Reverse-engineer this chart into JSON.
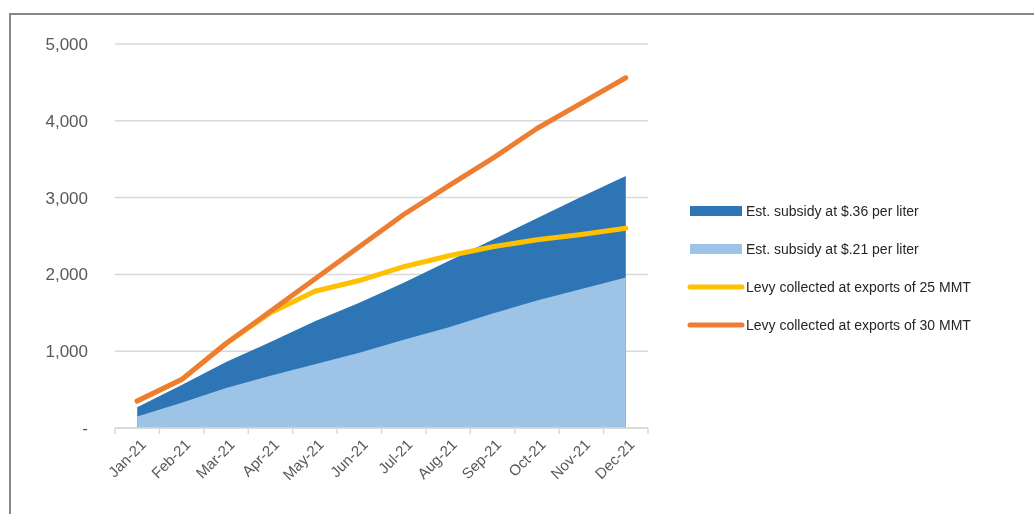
{
  "chart_data": {
    "type": "line",
    "categories": [
      "Jan-21",
      "Feb-21",
      "Mar-21",
      "Apr-21",
      "May-21",
      "Jun-21",
      "Jul-21",
      "Aug-21",
      "Sep-21",
      "Oct-21",
      "Nov-21",
      "Dec-21"
    ],
    "series": [
      {
        "name": "Est. subsidy at $.36 per liter",
        "type": "area",
        "color": "#2e75b6",
        "values": [
          270,
          560,
          860,
          1120,
          1390,
          1630,
          1890,
          2170,
          2450,
          2730,
          3010,
          3280
        ]
      },
      {
        "name": "Est. subsidy at $.21 per liter",
        "type": "area",
        "color": "#9dc3e6",
        "values": [
          150,
          330,
          520,
          680,
          830,
          980,
          1150,
          1310,
          1490,
          1660,
          1810,
          1960
        ]
      },
      {
        "name": "Levy collected at exports of 25 MMT",
        "color": "#ffc000",
        "values": [
          350,
          630,
          1100,
          1500,
          1780,
          1920,
          2100,
          2240,
          2360,
          2450,
          2520,
          2600
        ]
      },
      {
        "name": "Levy collected at exports of 30 MMT",
        "color": "#ed7d31",
        "values": [
          350,
          630,
          1100,
          1520,
          1940,
          2360,
          2780,
          3150,
          3510,
          3900,
          4230,
          4560
        ]
      }
    ],
    "ylim": [
      0,
      5000
    ],
    "yticks": [
      {
        "value": 0,
        "label": "-"
      },
      {
        "value": 1000,
        "label": "1,000"
      },
      {
        "value": 2000,
        "label": "2,000"
      },
      {
        "value": 3000,
        "label": "3,000"
      },
      {
        "value": 4000,
        "label": "4,000"
      },
      {
        "value": 5000,
        "label": "5,000"
      }
    ],
    "grid": "y",
    "legend": "right",
    "line_style": "solid",
    "marker": "none"
  }
}
